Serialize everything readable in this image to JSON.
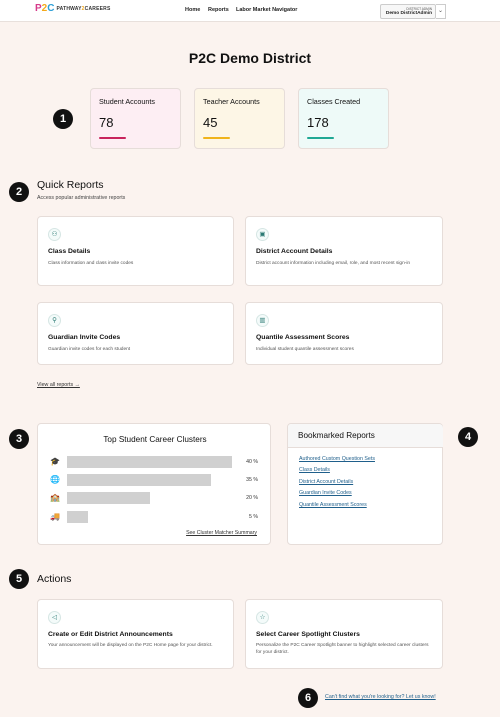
{
  "header": {
    "logo_mark": [
      "P",
      "2",
      "C"
    ],
    "logo_text": [
      "PATHWAY",
      "2",
      "CAREERS"
    ],
    "nav": [
      "Home",
      "Reports",
      "Labor Market Navigator"
    ],
    "user_role": "DISTRICT ADMIN",
    "user_name": "Demo DistrictAdmin",
    "caret_icon": "chevron-down-icon"
  },
  "page_title": "P2C Demo District",
  "badges": [
    "1",
    "2",
    "3",
    "4",
    "5",
    "6"
  ],
  "stats": [
    {
      "label": "Student Accounts",
      "value": "78",
      "bg": "#fdeef3",
      "accent": "#c8235c"
    },
    {
      "label": "Teacher Accounts",
      "value": "45",
      "bg": "#fdf6e6",
      "accent": "#f0b41c"
    },
    {
      "label": "Classes Created",
      "value": "178",
      "bg": "#eefaf8",
      "accent": "#1fa894"
    }
  ],
  "quick_reports": {
    "title": "Quick Reports",
    "subtitle": "Access popular administrative reports",
    "cards": [
      {
        "icon": "users-icon",
        "title": "Class Details",
        "desc": "Class information and class invite codes"
      },
      {
        "icon": "briefcase-icon",
        "title": "District Account Details",
        "desc": "District account information including email, role, and most recent sign-in"
      },
      {
        "icon": "user-plus-icon",
        "title": "Guardian Invite Codes",
        "desc": "Guardian invite codes for each student"
      },
      {
        "icon": "bar-chart-icon",
        "title": "Quantile Assessment Scores",
        "desc": "Individual student quantile assessment scores"
      }
    ],
    "view_all": "View all reports →"
  },
  "career_clusters": {
    "title": "Top Student Career Clusters",
    "link": "See Cluster Matcher Summary",
    "rows": [
      {
        "icon": "graduation-cap-icon",
        "glyph": "🎓",
        "pct": "40 %",
        "value": 40
      },
      {
        "icon": "globe-icon",
        "glyph": "🌐",
        "pct": "35 %",
        "value": 35
      },
      {
        "icon": "easel-icon",
        "glyph": "🏫",
        "pct": "20 %",
        "value": 20
      },
      {
        "icon": "truck-icon",
        "glyph": "🚚",
        "pct": "5 %",
        "value": 5
      }
    ]
  },
  "bookmarks": {
    "title": "Bookmarked Reports",
    "links": [
      "Authored Custom Question Sets",
      "Class Details",
      "District Account Details",
      "Guardian Invite Codes",
      "Quantile Assessment Scores"
    ]
  },
  "actions": {
    "title": "Actions",
    "cards": [
      {
        "icon": "megaphone-icon",
        "title": "Create or Edit District Announcements",
        "desc": "Your announcement will be displayed on the P2C Home page for your district."
      },
      {
        "icon": "star-icon",
        "title": "Select Career Spotlight Clusters",
        "desc": "Personalize the P2C Career Spotlight banner to highlight selected career clusters for your district."
      }
    ]
  },
  "help_link": "Can't find what you're looking for? Let us know!"
}
